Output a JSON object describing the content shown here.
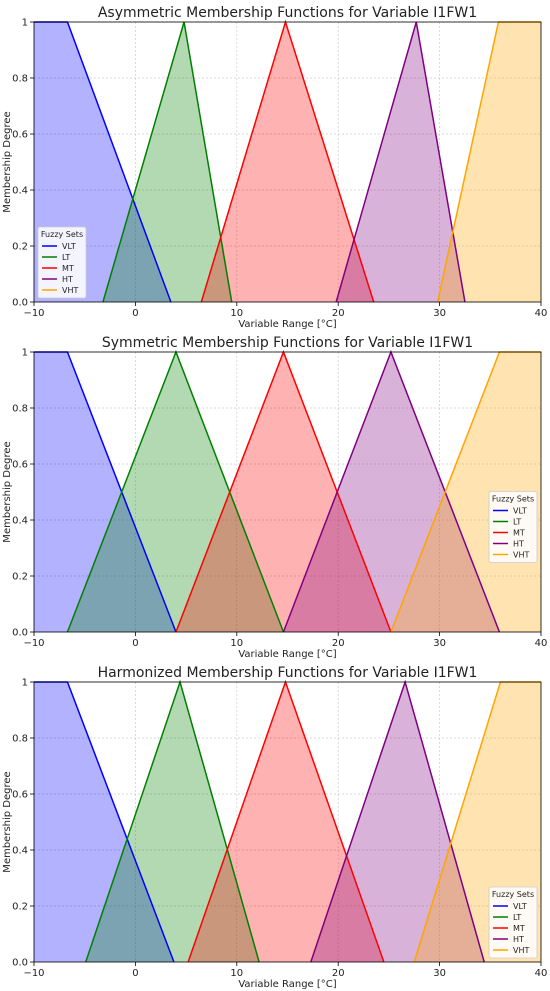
{
  "chart_data": [
    {
      "type": "area",
      "title": "Asymmetric Membership Functions for Variable I1FW1",
      "xlabel": "Variable Range [°C]",
      "ylabel": "Membership Degree",
      "xlim": [
        -10,
        40
      ],
      "ylim": [
        0,
        1
      ],
      "xticks": [
        -10,
        0,
        10,
        20,
        30,
        40
      ],
      "yticks": [
        0.0,
        0.2,
        0.4,
        0.6,
        0.8,
        1.0
      ],
      "grid": true,
      "legend_title": "Fuzzy Sets",
      "legend_position": "bottom-left",
      "series": [
        {
          "name": "VLT",
          "color": "#0000ff",
          "points": [
            [
              -10,
              1.0
            ],
            [
              -6.7,
              1.0
            ],
            [
              3.5,
              0.0
            ]
          ]
        },
        {
          "name": "LT",
          "color": "#008000",
          "points": [
            [
              -3.2,
              0.0
            ],
            [
              4.8,
              1.0
            ],
            [
              9.5,
              0.0
            ]
          ]
        },
        {
          "name": "MT",
          "color": "#ff0000",
          "points": [
            [
              6.5,
              0.0
            ],
            [
              14.8,
              1.0
            ],
            [
              23.5,
              0.0
            ]
          ]
        },
        {
          "name": "HT",
          "color": "#800080",
          "points": [
            [
              19.8,
              0.0
            ],
            [
              27.7,
              1.0
            ],
            [
              32.5,
              0.0
            ]
          ]
        },
        {
          "name": "VHT",
          "color": "#ffa500",
          "points": [
            [
              29.8,
              0.0
            ],
            [
              35.8,
              1.0
            ],
            [
              40,
              1.0
            ]
          ]
        }
      ]
    },
    {
      "type": "area",
      "title": "Symmetric Membership Functions for Variable I1FW1",
      "xlabel": "Variable Range [°C]",
      "ylabel": "Membership Degree",
      "xlim": [
        -10,
        40
      ],
      "ylim": [
        0,
        1
      ],
      "xticks": [
        -10,
        0,
        10,
        20,
        30,
        40
      ],
      "yticks": [
        0.0,
        0.2,
        0.4,
        0.6,
        0.8,
        1.0
      ],
      "grid": true,
      "legend_title": "Fuzzy Sets",
      "legend_position": "center-right",
      "series": [
        {
          "name": "VLT",
          "color": "#0000ff",
          "points": [
            [
              -10,
              1.0
            ],
            [
              -6.7,
              1.0
            ],
            [
              4.0,
              0.0
            ]
          ]
        },
        {
          "name": "LT",
          "color": "#008000",
          "points": [
            [
              -6.7,
              0.0
            ],
            [
              4.0,
              1.0
            ],
            [
              14.6,
              0.0
            ]
          ]
        },
        {
          "name": "MT",
          "color": "#ff0000",
          "points": [
            [
              4.0,
              0.0
            ],
            [
              14.6,
              1.0
            ],
            [
              25.2,
              0.0
            ]
          ]
        },
        {
          "name": "HT",
          "color": "#800080",
          "points": [
            [
              14.6,
              0.0
            ],
            [
              25.2,
              1.0
            ],
            [
              35.9,
              0.0
            ]
          ]
        },
        {
          "name": "VHT",
          "color": "#ffa500",
          "points": [
            [
              25.2,
              0.0
            ],
            [
              35.9,
              1.0
            ],
            [
              40,
              1.0
            ]
          ]
        }
      ]
    },
    {
      "type": "area",
      "title": "Harmonized Membership Functions for Variable I1FW1",
      "xlabel": "Variable Range [°C]",
      "ylabel": "Membership Degree",
      "xlim": [
        -10,
        40
      ],
      "ylim": [
        0,
        1
      ],
      "xticks": [
        -10,
        0,
        10,
        20,
        30,
        40
      ],
      "yticks": [
        0.0,
        0.2,
        0.4,
        0.6,
        0.8,
        1.0
      ],
      "grid": true,
      "legend_title": "Fuzzy Sets",
      "legend_position": "bottom-right",
      "series": [
        {
          "name": "VLT",
          "color": "#0000ff",
          "points": [
            [
              -10,
              1.0
            ],
            [
              -6.7,
              1.0
            ],
            [
              3.8,
              0.0
            ]
          ]
        },
        {
          "name": "LT",
          "color": "#008000",
          "points": [
            [
              -4.9,
              0.0
            ],
            [
              4.4,
              1.0
            ],
            [
              12.2,
              0.0
            ]
          ]
        },
        {
          "name": "MT",
          "color": "#ff0000",
          "points": [
            [
              5.2,
              0.0
            ],
            [
              14.8,
              1.0
            ],
            [
              24.5,
              0.0
            ]
          ]
        },
        {
          "name": "HT",
          "color": "#800080",
          "points": [
            [
              17.3,
              0.0
            ],
            [
              26.6,
              1.0
            ],
            [
              34.4,
              0.0
            ]
          ]
        },
        {
          "name": "VHT",
          "color": "#ffa500",
          "points": [
            [
              27.5,
              0.0
            ],
            [
              36.0,
              1.0
            ],
            [
              40,
              1.0
            ]
          ]
        }
      ]
    }
  ]
}
